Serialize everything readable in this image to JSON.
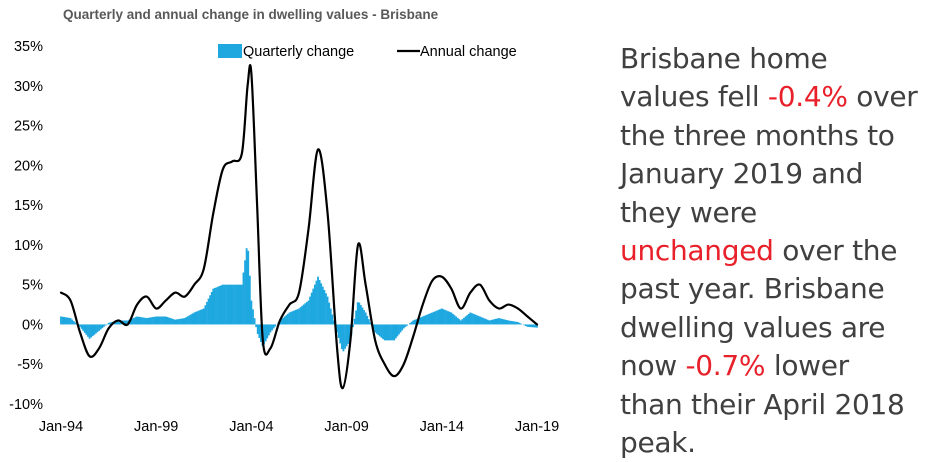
{
  "colors": {
    "quarterly": "#1fa8e0",
    "annual": "#000000",
    "axis_text": "#000000",
    "title": "#595959",
    "highlight": "#e8202a",
    "body_text": "#404040"
  },
  "chart_data": {
    "type": "bar+line",
    "title": "Quarterly and annual change in dwelling values - Brisbane",
    "ylim": [
      -10,
      35
    ],
    "y_ticks": [
      -10,
      -5,
      0,
      5,
      10,
      15,
      20,
      25,
      30,
      35
    ],
    "y_tick_labels": [
      "-10%",
      "-5%",
      "0%",
      "5%",
      "10%",
      "15%",
      "20%",
      "25%",
      "30%",
      "35%"
    ],
    "x_range": [
      "Jan-94",
      "Jan-19"
    ],
    "x_ticks": [
      1994,
      1999,
      2004,
      2009,
      2014,
      2019
    ],
    "x_tick_labels": [
      "Jan-94",
      "Jan-99",
      "Jan-04",
      "Jan-09",
      "Jan-14",
      "Jan-19"
    ],
    "grid": false,
    "legend": {
      "position": "top",
      "entries": [
        "Quarterly change",
        "Annual change"
      ]
    },
    "series": [
      {
        "name": "Quarterly change",
        "kind": "bar",
        "points": [
          [
            1994.0,
            1.0
          ],
          [
            1994.5,
            0.8
          ],
          [
            1995.0,
            -0.3
          ],
          [
            1995.5,
            -1.8
          ],
          [
            1996.0,
            -0.8
          ],
          [
            1996.5,
            0.2
          ],
          [
            1997.0,
            0.5
          ],
          [
            1997.5,
            0.5
          ],
          [
            1998.0,
            1.0
          ],
          [
            1998.5,
            0.8
          ],
          [
            1999.0,
            1.0
          ],
          [
            1999.5,
            1.0
          ],
          [
            2000.0,
            0.6
          ],
          [
            2000.5,
            0.8
          ],
          [
            2001.0,
            1.5
          ],
          [
            2001.5,
            2.0
          ],
          [
            2002.0,
            4.5
          ],
          [
            2002.5,
            5.0
          ],
          [
            2003.0,
            5.0
          ],
          [
            2003.5,
            5.0
          ],
          [
            2003.8,
            10.5
          ],
          [
            2004.0,
            3.0
          ],
          [
            2004.3,
            -1.0
          ],
          [
            2004.6,
            -2.8
          ],
          [
            2005.0,
            -1.0
          ],
          [
            2005.5,
            0.5
          ],
          [
            2006.0,
            1.5
          ],
          [
            2006.5,
            2.0
          ],
          [
            2007.0,
            3.0
          ],
          [
            2007.5,
            6.0
          ],
          [
            2008.0,
            3.5
          ],
          [
            2008.5,
            -1.0
          ],
          [
            2008.8,
            -3.5
          ],
          [
            2009.2,
            -2.0
          ],
          [
            2009.6,
            3.0
          ],
          [
            2010.0,
            1.5
          ],
          [
            2010.5,
            -1.0
          ],
          [
            2011.0,
            -2.0
          ],
          [
            2011.5,
            -2.0
          ],
          [
            2012.0,
            -0.5
          ],
          [
            2012.5,
            0.5
          ],
          [
            2013.0,
            1.0
          ],
          [
            2013.5,
            1.5
          ],
          [
            2014.0,
            2.0
          ],
          [
            2014.5,
            1.5
          ],
          [
            2015.0,
            0.5
          ],
          [
            2015.5,
            1.5
          ],
          [
            2016.0,
            1.0
          ],
          [
            2016.5,
            0.5
          ],
          [
            2017.0,
            0.8
          ],
          [
            2017.5,
            0.5
          ],
          [
            2018.0,
            0.3
          ],
          [
            2018.5,
            -0.3
          ],
          [
            2019.0,
            -0.4
          ]
        ]
      },
      {
        "name": "Annual change",
        "kind": "line",
        "points": [
          [
            1994.0,
            4.0
          ],
          [
            1994.5,
            3.0
          ],
          [
            1995.0,
            -1.0
          ],
          [
            1995.5,
            -4.0
          ],
          [
            1996.0,
            -3.0
          ],
          [
            1996.5,
            -0.5
          ],
          [
            1997.0,
            0.5
          ],
          [
            1997.5,
            0.0
          ],
          [
            1998.0,
            2.5
          ],
          [
            1998.5,
            3.5
          ],
          [
            1999.0,
            2.0
          ],
          [
            1999.5,
            3.0
          ],
          [
            2000.0,
            4.0
          ],
          [
            2000.5,
            3.5
          ],
          [
            2001.0,
            5.0
          ],
          [
            2001.5,
            7.0
          ],
          [
            2002.0,
            14.0
          ],
          [
            2002.5,
            19.5
          ],
          [
            2003.0,
            20.5
          ],
          [
            2003.5,
            21.5
          ],
          [
            2003.8,
            30.0
          ],
          [
            2004.0,
            31.5
          ],
          [
            2004.3,
            15.0
          ],
          [
            2004.6,
            -2.0
          ],
          [
            2005.0,
            -3.0
          ],
          [
            2005.5,
            0.5
          ],
          [
            2006.0,
            2.5
          ],
          [
            2006.5,
            4.0
          ],
          [
            2007.0,
            12.0
          ],
          [
            2007.5,
            22.0
          ],
          [
            2008.0,
            14.0
          ],
          [
            2008.5,
            -3.0
          ],
          [
            2008.8,
            -8.0
          ],
          [
            2009.2,
            -2.0
          ],
          [
            2009.6,
            10.0
          ],
          [
            2010.0,
            5.0
          ],
          [
            2010.5,
            -2.0
          ],
          [
            2011.0,
            -5.0
          ],
          [
            2011.5,
            -6.5
          ],
          [
            2012.0,
            -5.0
          ],
          [
            2012.5,
            -1.5
          ],
          [
            2013.0,
            2.5
          ],
          [
            2013.5,
            5.5
          ],
          [
            2014.0,
            6.0
          ],
          [
            2014.5,
            4.5
          ],
          [
            2015.0,
            2.0
          ],
          [
            2015.5,
            4.0
          ],
          [
            2016.0,
            5.0
          ],
          [
            2016.5,
            3.0
          ],
          [
            2017.0,
            2.0
          ],
          [
            2017.5,
            2.5
          ],
          [
            2018.0,
            2.0
          ],
          [
            2018.5,
            1.0
          ],
          [
            2019.0,
            0.0
          ]
        ]
      }
    ]
  },
  "commentary": {
    "l1": "Brisbane home",
    "l2_a": "values fell ",
    "l2_hl": "-0.4%",
    "l2_b": " over",
    "l3": "the three months to",
    "l4": "January 2019 and",
    "l5": "they were",
    "l6_hl": "unchanged",
    "l6_b": " over the",
    "l7": "past year. Brisbane",
    "l8": "dwelling values are",
    "l9_a": "now ",
    "l9_hl": "-0.7%",
    "l9_b": " lower",
    "l10": "than their April 2018",
    "l11": "peak."
  }
}
